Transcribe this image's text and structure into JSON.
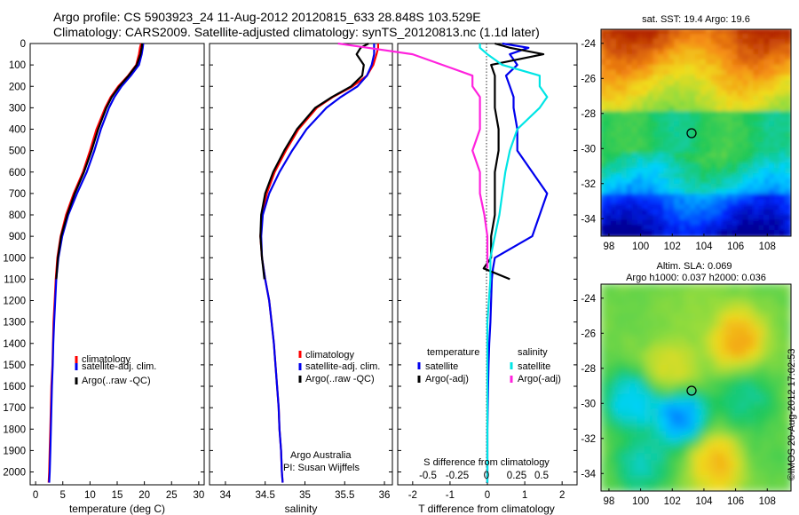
{
  "title_line1": "Argo profile: CS 5903923_24 11-Aug-2012 20120815_633 28.848S 103.529E",
  "title_line2": "Climatology: CARS2009. Satellite-adjusted climatology: synTS_20120813.nc (1.1d later)",
  "credit_line1": "Argo Australia",
  "credit_line2": "PI: Susan Wijffels",
  "watermark": "©IMOS 20-Aug-2012 17:02:53",
  "colors": {
    "climatology": "#ff0000",
    "satellite": "#0000ee",
    "argo": "#000000",
    "satellite_salinity": "#00e5e5",
    "argo_salinity": "#ff22dd"
  },
  "chart_data": [
    {
      "type": "line",
      "panel": "temperature",
      "xlabel": "temperature (deg C)",
      "xlim": [
        -1,
        31
      ],
      "xticks": [
        0,
        5,
        10,
        15,
        20,
        25,
        30
      ],
      "ylim": [
        2060,
        0
      ],
      "yticks": [
        0,
        100,
        200,
        300,
        400,
        500,
        600,
        700,
        800,
        900,
        1000,
        1100,
        1200,
        1300,
        1400,
        1500,
        1600,
        1700,
        1800,
        1900,
        2000
      ],
      "legend": [
        "climatology",
        "satellite-adj. clim.",
        "Argo(..raw -QC)"
      ],
      "depth": [
        0,
        20,
        50,
        100,
        150,
        200,
        250,
        300,
        400,
        500,
        600,
        700,
        800,
        900,
        1000,
        1100,
        1200,
        1300,
        1400,
        1500,
        1600,
        1700,
        1800,
        1900,
        2000,
        2050
      ],
      "series": [
        {
          "name": "climatology",
          "values": [
            19.4,
            19.2,
            19.0,
            18.5,
            17.0,
            15.2,
            13.8,
            12.8,
            11.2,
            10.0,
            8.7,
            7.0,
            5.6,
            4.6,
            4.0,
            3.7,
            3.5,
            3.3,
            3.2,
            3.1,
            2.9,
            2.8,
            2.7,
            2.6,
            2.5,
            2.4
          ]
        },
        {
          "name": "satellite-adj. clim.",
          "values": [
            19.8,
            19.7,
            19.5,
            19.0,
            17.5,
            15.8,
            14.5,
            13.5,
            12.0,
            10.8,
            9.4,
            7.6,
            6.0,
            4.9,
            4.2,
            3.8,
            3.6,
            3.4,
            3.25,
            3.15,
            3.0,
            2.9,
            2.8,
            2.7,
            2.6,
            2.5
          ]
        },
        {
          "name": "Argo(..raw -QC)",
          "values": [
            19.6,
            19.5,
            19.3,
            18.6,
            17.1,
            15.4,
            14.0,
            13.0,
            11.5,
            10.3,
            8.9,
            7.2,
            5.8,
            4.7,
            4.1,
            3.8
          ]
        }
      ]
    },
    {
      "type": "line",
      "panel": "salinity",
      "xlabel": "salinity",
      "xlim": [
        33.8,
        36.1
      ],
      "xticks": [
        34,
        34.5,
        35,
        35.5,
        36
      ],
      "ylim": [
        2060,
        0
      ],
      "legend": [
        "climatology",
        "satellite-adj. clim.",
        "Argo(..raw -QC)"
      ],
      "depth": [
        0,
        20,
        50,
        100,
        150,
        200,
        250,
        300,
        400,
        500,
        600,
        700,
        800,
        900,
        1000,
        1100,
        1200,
        1300,
        1400,
        1500,
        1600,
        1700,
        1800,
        1900,
        2000,
        2050
      ],
      "series": [
        {
          "name": "climatology",
          "values": [
            35.92,
            35.92,
            35.9,
            35.86,
            35.78,
            35.6,
            35.35,
            35.15,
            34.92,
            34.76,
            34.62,
            34.52,
            34.46,
            34.44,
            34.46,
            34.5,
            34.55,
            34.58,
            34.61,
            34.63,
            34.65,
            34.67,
            34.68,
            34.7,
            34.71,
            34.72
          ]
        },
        {
          "name": "satellite-adj. clim.",
          "values": [
            35.87,
            35.87,
            35.87,
            35.84,
            35.78,
            35.66,
            35.45,
            35.27,
            35.02,
            34.84,
            34.68,
            34.55,
            34.47,
            34.45,
            34.46,
            34.5,
            34.55,
            34.58,
            34.61,
            34.63,
            34.65,
            34.67,
            34.68,
            34.7,
            34.71,
            34.72
          ]
        },
        {
          "name": "Argo(..raw -QC)",
          "values": [
            35.8,
            35.7,
            35.65,
            35.74,
            35.72,
            35.58,
            35.34,
            35.13,
            34.9,
            34.74,
            34.6,
            34.5,
            34.45,
            34.44,
            34.46,
            34.49
          ]
        }
      ]
    },
    {
      "type": "line",
      "panel": "difference",
      "xlabel": "T difference from climatology",
      "xlabel_top": "S difference from climatology",
      "xlim": [
        -2.4,
        2.4
      ],
      "xticks": [
        -2,
        -1,
        0,
        1,
        2
      ],
      "xticks_top": [
        "-0.5",
        "-0.25",
        "0",
        "0.25",
        "0.5"
      ],
      "ylim": [
        2060,
        0
      ],
      "legend_headers": [
        "temperature",
        "salinity"
      ],
      "legend": [
        "satellite",
        "Argo(-adj)",
        "satellite",
        "Argo(-adj)"
      ],
      "depth": [
        0,
        20,
        50,
        100,
        150,
        200,
        250,
        300,
        400,
        500,
        600,
        700,
        800,
        900,
        1000,
        1050,
        1100,
        1200,
        1300,
        1400,
        1500,
        1600,
        1700,
        1800,
        1900,
        2000,
        2050
      ],
      "series": [
        {
          "name": "satellite",
          "quantity": "temperature",
          "values": [
            0.4,
            1.1,
            0.6,
            0.8,
            0.5,
            0.6,
            0.7,
            0.7,
            0.8,
            0.8,
            1.2,
            1.6,
            1.4,
            1.2,
            0.2,
            0.15,
            0.12,
            0.1,
            0.08,
            0.05,
            0.03,
            0.02,
            0.01,
            0.0,
            0.0,
            0.0,
            0.0
          ]
        },
        {
          "name": "Argo(-adj)",
          "quantity": "temperature",
          "values": [
            0.2,
            0.6,
            1.5,
            0.1,
            0.2,
            0.2,
            0.2,
            0.2,
            0.3,
            0.3,
            0.2,
            0.2,
            0.2,
            0.1,
            0.1,
            -0.1,
            0.6
          ]
        },
        {
          "name": "satellite",
          "quantity": "salinity",
          "values": [
            -0.05,
            -0.05,
            0.0,
            0.1,
            0.35,
            0.35,
            0.4,
            0.35,
            0.2,
            0.15,
            0.12,
            0.1,
            0.08,
            0.05,
            0.02,
            0.02,
            0.02,
            0.01,
            0.0,
            0.0,
            0.0,
            0.0,
            0.0,
            0.0,
            0.0,
            0.0,
            0.0
          ]
        },
        {
          "name": "Argo(-adj)",
          "quantity": "salinity",
          "values": [
            -1.0,
            -0.8,
            -0.5,
            -0.3,
            -0.1,
            -0.1,
            -0.05,
            -0.05,
            -0.05,
            -0.1,
            -0.05,
            -0.05,
            -0.02,
            0.0,
            0.0,
            0.0
          ]
        }
      ]
    },
    {
      "type": "heatmap",
      "panel": "sst-map",
      "title": "sat. SST: 19.4  Argo: 19.6",
      "xticks": [
        98,
        100,
        102,
        104,
        106,
        108
      ],
      "yticks": [
        -24,
        -26,
        -28,
        -30,
        -32,
        -34
      ],
      "xlim": [
        97.5,
        109.5
      ],
      "ylim": [
        -35,
        -23.2
      ],
      "marker": {
        "lon": 103.529,
        "lat": -28.848
      }
    },
    {
      "type": "heatmap",
      "panel": "sla-map",
      "title_line1": "Altim. SLA: 0.069",
      "title_line2": "Argo h1000: 0.037  h2000: 0.036",
      "xticks": [
        98,
        100,
        102,
        104,
        106,
        108
      ],
      "yticks": [
        -24,
        -26,
        -28,
        -30,
        -32,
        -34
      ],
      "xlim": [
        97.5,
        109.5
      ],
      "ylim": [
        -35,
        -23.2
      ],
      "marker": {
        "lon": 103.529,
        "lat": -28.848
      }
    }
  ]
}
